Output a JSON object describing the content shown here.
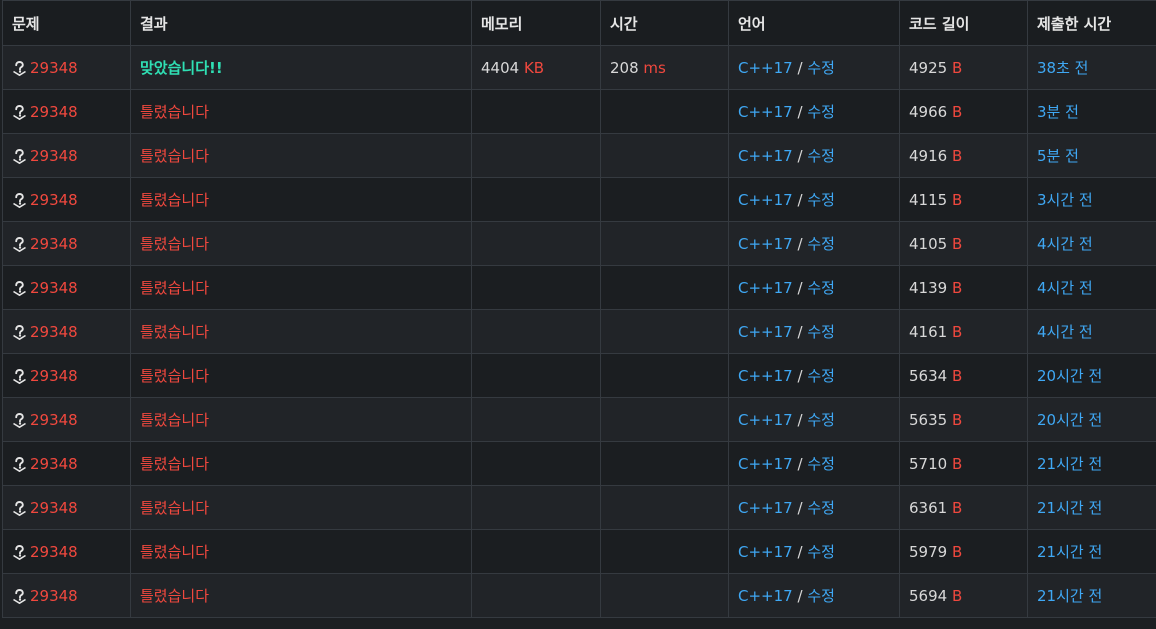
{
  "headers": [
    "문제",
    "결과",
    "메모리",
    "시간",
    "언어",
    "코드 길이",
    "제출한 시간"
  ],
  "colors": {
    "accepted": "#2fe0b4",
    "wrong": "#f0483e",
    "link": "#3fa8f4",
    "unit": "#f0483e"
  },
  "rows": [
    {
      "problem": "29348",
      "result": "맞았습니다!!",
      "result_type": "accepted",
      "memory": "4404",
      "memory_unit": "KB",
      "time": "208",
      "time_unit": "ms",
      "language": "C++17",
      "edit": "수정",
      "code_length": "4925",
      "code_unit": "B",
      "submitted": "38초 전"
    },
    {
      "problem": "29348",
      "result": "틀렸습니다",
      "result_type": "wrong",
      "memory": "",
      "memory_unit": "",
      "time": "",
      "time_unit": "",
      "language": "C++17",
      "edit": "수정",
      "code_length": "4966",
      "code_unit": "B",
      "submitted": "3분 전"
    },
    {
      "problem": "29348",
      "result": "틀렸습니다",
      "result_type": "wrong",
      "memory": "",
      "memory_unit": "",
      "time": "",
      "time_unit": "",
      "language": "C++17",
      "edit": "수정",
      "code_length": "4916",
      "code_unit": "B",
      "submitted": "5분 전"
    },
    {
      "problem": "29348",
      "result": "틀렸습니다",
      "result_type": "wrong",
      "memory": "",
      "memory_unit": "",
      "time": "",
      "time_unit": "",
      "language": "C++17",
      "edit": "수정",
      "code_length": "4115",
      "code_unit": "B",
      "submitted": "3시간 전"
    },
    {
      "problem": "29348",
      "result": "틀렸습니다",
      "result_type": "wrong",
      "memory": "",
      "memory_unit": "",
      "time": "",
      "time_unit": "",
      "language": "C++17",
      "edit": "수정",
      "code_length": "4105",
      "code_unit": "B",
      "submitted": "4시간 전"
    },
    {
      "problem": "29348",
      "result": "틀렸습니다",
      "result_type": "wrong",
      "memory": "",
      "memory_unit": "",
      "time": "",
      "time_unit": "",
      "language": "C++17",
      "edit": "수정",
      "code_length": "4139",
      "code_unit": "B",
      "submitted": "4시간 전"
    },
    {
      "problem": "29348",
      "result": "틀렸습니다",
      "result_type": "wrong",
      "memory": "",
      "memory_unit": "",
      "time": "",
      "time_unit": "",
      "language": "C++17",
      "edit": "수정",
      "code_length": "4161",
      "code_unit": "B",
      "submitted": "4시간 전"
    },
    {
      "problem": "29348",
      "result": "틀렸습니다",
      "result_type": "wrong",
      "memory": "",
      "memory_unit": "",
      "time": "",
      "time_unit": "",
      "language": "C++17",
      "edit": "수정",
      "code_length": "5634",
      "code_unit": "B",
      "submitted": "20시간 전"
    },
    {
      "problem": "29348",
      "result": "틀렸습니다",
      "result_type": "wrong",
      "memory": "",
      "memory_unit": "",
      "time": "",
      "time_unit": "",
      "language": "C++17",
      "edit": "수정",
      "code_length": "5635",
      "code_unit": "B",
      "submitted": "20시간 전"
    },
    {
      "problem": "29348",
      "result": "틀렸습니다",
      "result_type": "wrong",
      "memory": "",
      "memory_unit": "",
      "time": "",
      "time_unit": "",
      "language": "C++17",
      "edit": "수정",
      "code_length": "5710",
      "code_unit": "B",
      "submitted": "21시간 전"
    },
    {
      "problem": "29348",
      "result": "틀렸습니다",
      "result_type": "wrong",
      "memory": "",
      "memory_unit": "",
      "time": "",
      "time_unit": "",
      "language": "C++17",
      "edit": "수정",
      "code_length": "6361",
      "code_unit": "B",
      "submitted": "21시간 전"
    },
    {
      "problem": "29348",
      "result": "틀렸습니다",
      "result_type": "wrong",
      "memory": "",
      "memory_unit": "",
      "time": "",
      "time_unit": "",
      "language": "C++17",
      "edit": "수정",
      "code_length": "5979",
      "code_unit": "B",
      "submitted": "21시간 전"
    },
    {
      "problem": "29348",
      "result": "틀렸습니다",
      "result_type": "wrong",
      "memory": "",
      "memory_unit": "",
      "time": "",
      "time_unit": "",
      "language": "C++17",
      "edit": "수정",
      "code_length": "5694",
      "code_unit": "B",
      "submitted": "21시간 전"
    }
  ],
  "icons": {
    "problem_status": "question-mark-icon"
  }
}
